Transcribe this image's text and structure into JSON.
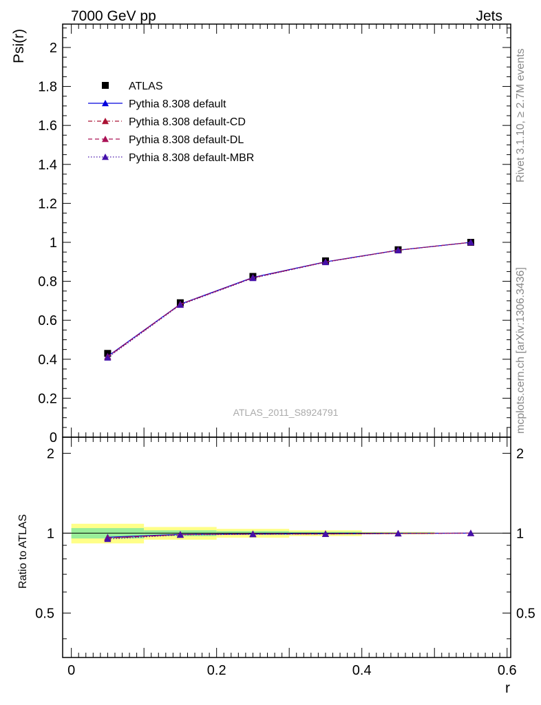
{
  "header": {
    "left": "7000 GeV pp",
    "right": "Jets"
  },
  "side_labels": {
    "rivet": "Rivet 3.1.10, ≥ 2.7M events",
    "mcplots": "mcplots.cern.ch [arXiv:1306.3436]"
  },
  "analysis_label": "ATLAS_2011_S8924791",
  "chart_data": [
    {
      "type": "line",
      "ylabel": "Psi(r)",
      "ylim": [
        0,
        2.12
      ],
      "xlim": [
        -0.012,
        0.605
      ],
      "yticks": [
        0,
        0.2,
        0.4,
        0.6,
        0.8,
        1,
        1.2,
        1.4,
        1.6,
        1.8,
        2
      ],
      "ytick_labels": [
        "0",
        "0.2",
        "0.4",
        "0.6",
        "0.8",
        "1",
        "1.2",
        "1.4",
        "1.6",
        "1.8",
        "2"
      ],
      "legend_position": "top-left",
      "x": [
        0.05,
        0.15,
        0.25,
        0.35,
        0.45,
        0.55
      ],
      "series": [
        {
          "name": "ATLAS",
          "marker": "square",
          "color": "#000000",
          "values": [
            0.43,
            0.69,
            0.825,
            0.905,
            0.962,
            1.0
          ]
        },
        {
          "name": "Pythia 8.308 default",
          "marker": "triangle",
          "color": "#0000dd",
          "dash": "solid",
          "values": [
            0.415,
            0.683,
            0.82,
            0.9,
            0.96,
            1.0
          ]
        },
        {
          "name": "Pythia 8.308 default-CD",
          "marker": "triangle",
          "color": "#aa1133",
          "dash": "dashdot",
          "values": [
            0.412,
            0.681,
            0.818,
            0.899,
            0.959,
            1.0
          ]
        },
        {
          "name": "Pythia 8.308 default-DL",
          "marker": "triangle",
          "color": "#aa1155",
          "dash": "dashed",
          "values": [
            0.413,
            0.682,
            0.818,
            0.899,
            0.96,
            1.0
          ]
        },
        {
          "name": "Pythia 8.308 default-MBR",
          "marker": "triangle",
          "color": "#4411aa",
          "dash": "dotted",
          "values": [
            0.408,
            0.679,
            0.816,
            0.898,
            0.959,
            1.0
          ]
        }
      ]
    },
    {
      "type": "line",
      "ylabel": "Ratio to ATLAS",
      "xlabel": "r",
      "ylim": [
        0.34,
        2.3
      ],
      "xlim": [
        -0.012,
        0.605
      ],
      "yticks": [
        0.5,
        1,
        2
      ],
      "ytick_labels": [
        "0.5",
        "1",
        "2"
      ],
      "xticks": [
        0,
        0.2,
        0.4,
        0.6
      ],
      "xtick_labels": [
        "0",
        "0.2",
        "0.4",
        "0.6"
      ],
      "bands": [
        {
          "x0": 0.0,
          "x1": 0.1,
          "inner": [
            0.955,
            1.045
          ],
          "outer": [
            0.915,
            1.085
          ]
        },
        {
          "x0": 0.1,
          "x1": 0.2,
          "inner": [
            0.975,
            1.025
          ],
          "outer": [
            0.945,
            1.055
          ]
        },
        {
          "x0": 0.2,
          "x1": 0.3,
          "inner": [
            0.985,
            1.018
          ],
          "outer": [
            0.962,
            1.038
          ]
        },
        {
          "x0": 0.3,
          "x1": 0.4,
          "inner": [
            0.99,
            1.012
          ],
          "outer": [
            0.975,
            1.025
          ]
        },
        {
          "x0": 0.4,
          "x1": 0.5,
          "inner": [
            0.996,
            1.006
          ],
          "outer": [
            0.99,
            1.01
          ]
        }
      ],
      "band_colors": {
        "inner": "#99ee99",
        "outer": "#ffff88"
      },
      "x": [
        0.05,
        0.15,
        0.25,
        0.35,
        0.45,
        0.55
      ],
      "series": [
        {
          "name": "Pythia 8.308 default",
          "color": "#0000dd",
          "dash": "solid",
          "values": [
            0.965,
            0.99,
            0.994,
            0.995,
            0.998,
            1.0
          ]
        },
        {
          "name": "Pythia 8.308 default-CD",
          "color": "#aa1133",
          "dash": "dashdot",
          "values": [
            0.958,
            0.987,
            0.992,
            0.993,
            0.997,
            1.0
          ]
        },
        {
          "name": "Pythia 8.308 default-DL",
          "color": "#aa1155",
          "dash": "dashed",
          "values": [
            0.96,
            0.988,
            0.992,
            0.994,
            0.998,
            1.0
          ]
        },
        {
          "name": "Pythia 8.308 default-MBR",
          "color": "#4411aa",
          "dash": "dotted",
          "values": [
            0.95,
            0.985,
            0.99,
            0.993,
            0.997,
            1.0
          ]
        }
      ]
    }
  ]
}
